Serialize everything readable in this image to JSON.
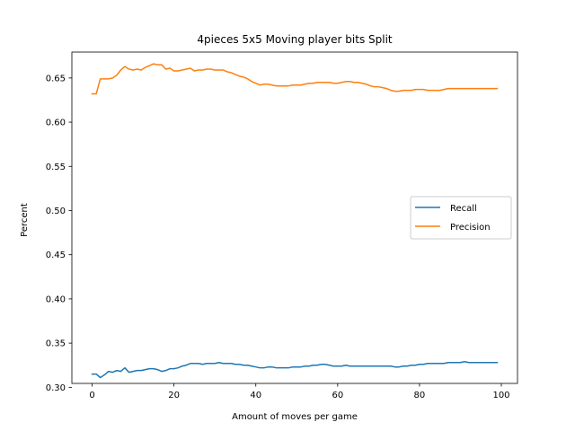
{
  "chart_data": {
    "type": "line",
    "title": "4pieces 5x5 Moving player bits Split",
    "xlabel": "Amount of moves per game",
    "ylabel": "Percent",
    "xlim": [
      -4.95,
      103.95
    ],
    "ylim": [
      0.3044,
      0.6793
    ],
    "xticks": [
      0,
      20,
      40,
      60,
      80,
      100
    ],
    "yticks": [
      0.3,
      0.35,
      0.4,
      0.45,
      0.5,
      0.55,
      0.6,
      0.65
    ],
    "ytick_labels": [
      "0.30",
      "0.35",
      "0.40",
      "0.45",
      "0.50",
      "0.55",
      "0.60",
      "0.65"
    ],
    "grid": false,
    "legend_position": "center-right",
    "colors": {
      "Recall": "#1f77b4",
      "Precision": "#ff7f0e"
    },
    "series": [
      {
        "name": "Recall",
        "x": [
          0,
          1,
          2,
          3,
          4,
          5,
          6,
          7,
          8,
          9,
          10,
          11,
          12,
          13,
          14,
          15,
          16,
          17,
          18,
          19,
          20,
          21,
          22,
          23,
          24,
          25,
          26,
          27,
          28,
          29,
          30,
          31,
          32,
          33,
          34,
          35,
          36,
          37,
          38,
          39,
          40,
          41,
          42,
          43,
          44,
          45,
          46,
          47,
          48,
          49,
          50,
          51,
          52,
          53,
          54,
          55,
          56,
          57,
          58,
          59,
          60,
          61,
          62,
          63,
          64,
          65,
          66,
          67,
          68,
          69,
          70,
          71,
          72,
          73,
          74,
          75,
          76,
          77,
          78,
          79,
          80,
          81,
          82,
          83,
          84,
          85,
          86,
          87,
          88,
          89,
          90,
          91,
          92,
          93,
          94,
          95,
          96,
          97,
          98,
          99
        ],
        "values": [
          0.315,
          0.315,
          0.311,
          0.314,
          0.318,
          0.317,
          0.319,
          0.318,
          0.322,
          0.317,
          0.318,
          0.319,
          0.319,
          0.32,
          0.321,
          0.321,
          0.32,
          0.318,
          0.319,
          0.321,
          0.321,
          0.322,
          0.324,
          0.325,
          0.327,
          0.327,
          0.327,
          0.326,
          0.327,
          0.327,
          0.327,
          0.328,
          0.327,
          0.327,
          0.327,
          0.326,
          0.326,
          0.325,
          0.325,
          0.324,
          0.323,
          0.322,
          0.322,
          0.323,
          0.323,
          0.322,
          0.322,
          0.322,
          0.322,
          0.323,
          0.323,
          0.323,
          0.324,
          0.324,
          0.325,
          0.325,
          0.326,
          0.326,
          0.325,
          0.324,
          0.324,
          0.324,
          0.325,
          0.324,
          0.324,
          0.324,
          0.324,
          0.324,
          0.324,
          0.324,
          0.324,
          0.324,
          0.324,
          0.324,
          0.323,
          0.323,
          0.324,
          0.324,
          0.325,
          0.325,
          0.326,
          0.326,
          0.327,
          0.327,
          0.327,
          0.327,
          0.327,
          0.328,
          0.328,
          0.328,
          0.328,
          0.329,
          0.328,
          0.328,
          0.328,
          0.328,
          0.328,
          0.328,
          0.328,
          0.328
        ]
      },
      {
        "name": "Precision",
        "x": [
          0,
          1,
          2,
          3,
          4,
          5,
          6,
          7,
          8,
          9,
          10,
          11,
          12,
          13,
          14,
          15,
          16,
          17,
          18,
          19,
          20,
          21,
          22,
          23,
          24,
          25,
          26,
          27,
          28,
          29,
          30,
          31,
          32,
          33,
          34,
          35,
          36,
          37,
          38,
          39,
          40,
          41,
          42,
          43,
          44,
          45,
          46,
          47,
          48,
          49,
          50,
          51,
          52,
          53,
          54,
          55,
          56,
          57,
          58,
          59,
          60,
          61,
          62,
          63,
          64,
          65,
          66,
          67,
          68,
          69,
          70,
          71,
          72,
          73,
          74,
          75,
          76,
          77,
          78,
          79,
          80,
          81,
          82,
          83,
          84,
          85,
          86,
          87,
          88,
          89,
          90,
          91,
          92,
          93,
          94,
          95,
          96,
          97,
          98,
          99
        ],
        "values": [
          0.632,
          0.632,
          0.649,
          0.649,
          0.649,
          0.65,
          0.653,
          0.659,
          0.663,
          0.66,
          0.659,
          0.66,
          0.659,
          0.662,
          0.664,
          0.666,
          0.665,
          0.665,
          0.66,
          0.661,
          0.658,
          0.658,
          0.659,
          0.66,
          0.661,
          0.658,
          0.659,
          0.659,
          0.66,
          0.66,
          0.659,
          0.659,
          0.659,
          0.657,
          0.656,
          0.654,
          0.652,
          0.651,
          0.649,
          0.646,
          0.644,
          0.642,
          0.643,
          0.643,
          0.642,
          0.641,
          0.641,
          0.641,
          0.641,
          0.642,
          0.642,
          0.642,
          0.643,
          0.644,
          0.644,
          0.645,
          0.645,
          0.645,
          0.645,
          0.644,
          0.644,
          0.645,
          0.646,
          0.646,
          0.645,
          0.645,
          0.644,
          0.643,
          0.641,
          0.64,
          0.64,
          0.639,
          0.638,
          0.636,
          0.635,
          0.635,
          0.636,
          0.636,
          0.636,
          0.637,
          0.637,
          0.637,
          0.636,
          0.636,
          0.636,
          0.636,
          0.637,
          0.638,
          0.638,
          0.638,
          0.638,
          0.638,
          0.638,
          0.638,
          0.638,
          0.638,
          0.638,
          0.638,
          0.638,
          0.638
        ]
      }
    ]
  }
}
